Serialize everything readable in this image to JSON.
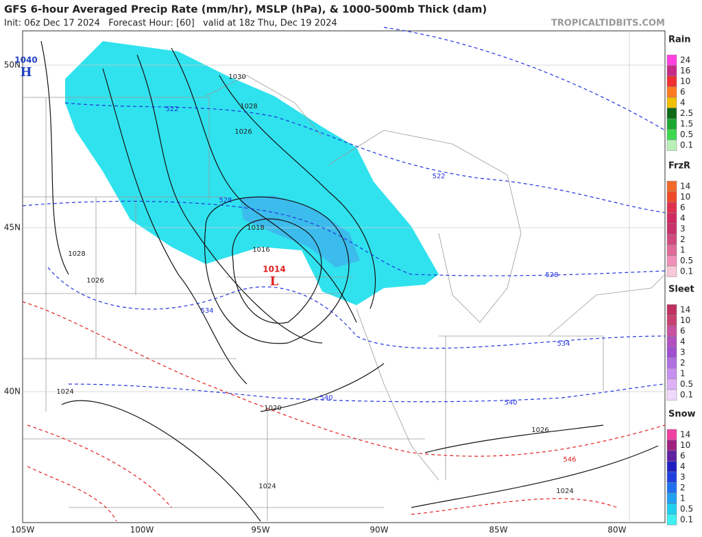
{
  "header": {
    "title": "GFS 6-hour Averaged Precip Rate (mm/hr), MSLP (hPa), & 1000-500mb Thick (dam)",
    "subtitle": "Init: 06z Dec 17 2024   Forecast Hour: [60]   valid at 18z Thu, Dec 19 2024",
    "site": "TROPICALTIDBITS.COM"
  },
  "axes": {
    "lat_labels": [
      "50N",
      "45N",
      "40N"
    ],
    "lon_labels": [
      "105W",
      "100W",
      "95W",
      "90W",
      "85W",
      "80W"
    ]
  },
  "legends": [
    {
      "title": "Rain",
      "labels": [
        "24",
        "16",
        "10",
        "6",
        "4",
        "2.5",
        "1.5",
        "0.5",
        "0.1"
      ],
      "colors": [
        "#ff40e0",
        "#c82a88",
        "#f03030",
        "#ff7a20",
        "#f0c000",
        "#0c6a18",
        "#1aa830",
        "#3cd850",
        "#b8f0b8"
      ]
    },
    {
      "title": "FrzR",
      "labels": [
        "14",
        "10",
        "6",
        "4",
        "3",
        "2",
        "1",
        "0.5",
        "0.1"
      ],
      "colors": [
        "#f06a2a",
        "#f04a2a",
        "#e03050",
        "#d02a60",
        "#c8306a",
        "#d04a80",
        "#e06a98",
        "#f090b8",
        "#f8c8d8"
      ]
    },
    {
      "title": "Sleet",
      "labels": [
        "14",
        "10",
        "6",
        "4",
        "3",
        "2",
        "1",
        "0.5",
        "0.1"
      ],
      "colors": [
        "#c03060",
        "#c84070",
        "#c850a0",
        "#b050c0",
        "#a050d0",
        "#b070e0",
        "#c890f0",
        "#ddb0f8",
        "#f0d8fc"
      ]
    },
    {
      "title": "Snow",
      "labels": [
        "14",
        "10",
        "6",
        "4",
        "3",
        "2",
        "1",
        "0.5",
        "0.1"
      ],
      "colors": [
        "#f040a0",
        "#a02080",
        "#6020a0",
        "#2020c0",
        "#2040e0",
        "#2070f0",
        "#20a0f0",
        "#20d0f0",
        "#40f0f0"
      ]
    }
  ],
  "centers": [
    {
      "value": "1040",
      "letter": "H",
      "color": "#2040c0"
    },
    {
      "value": "1014",
      "letter": "L",
      "color": "#e02020"
    }
  ],
  "isobar_labels": [
    "1030",
    "1028",
    "1026",
    "1018",
    "1016",
    "1028",
    "1026",
    "1024",
    "1020",
    "1026",
    "1024",
    "1024"
  ],
  "thickness_labels": [
    "522",
    "528",
    "534",
    "540",
    "546",
    "522",
    "528",
    "534",
    "540"
  ]
}
